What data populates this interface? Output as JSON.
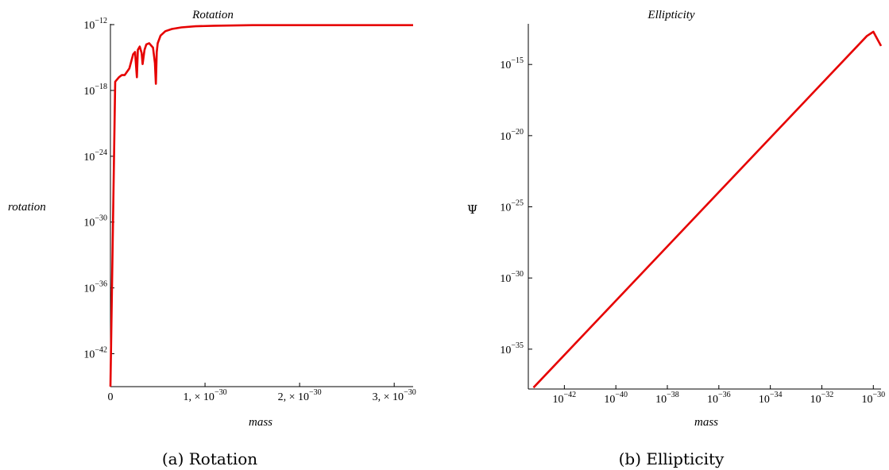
{
  "chart_data": [
    {
      "type": "line",
      "title": "Rotation",
      "xlabel": "mass",
      "ylabel": "rotation",
      "caption": "(a) Rotation",
      "xscale": "linear",
      "yscale": "log",
      "xlim": [
        0,
        3.2e-30
      ],
      "ylim_exp": [
        -45,
        -12
      ],
      "x_ticks": [
        {
          "value": 0,
          "mantissa": "0",
          "exp": ""
        },
        {
          "value": 1e-30,
          "mantissa": "1, × 10",
          "exp": "−30"
        },
        {
          "value": 2e-30,
          "mantissa": "2, × 10",
          "exp": "−30"
        },
        {
          "value": 3e-30,
          "mantissa": "3, × 10",
          "exp": "−30"
        }
      ],
      "y_ticks": [
        {
          "exp_value": -42,
          "label": "10",
          "exp": "−42"
        },
        {
          "exp_value": -36,
          "label": "10",
          "exp": "−36"
        },
        {
          "exp_value": -30,
          "label": "10",
          "exp": "−30"
        },
        {
          "exp_value": -24,
          "label": "10",
          "exp": "−24"
        },
        {
          "exp_value": -18,
          "label": "10",
          "exp": "−18"
        },
        {
          "exp_value": -12,
          "label": "10",
          "exp": "−12"
        }
      ],
      "series": [
        {
          "color": "#e60000",
          "x": [
            0,
            5e-32,
            9e-32,
            1.2e-31,
            1.5e-31,
            2e-31,
            2.4e-31,
            2.6e-31,
            2.8e-31,
            2.9e-31,
            3.1e-31,
            3.3e-31,
            3.4e-31,
            3.6e-31,
            3.8e-31,
            4.1e-31,
            4.5e-31,
            4.7e-31,
            4.8e-31,
            4.9e-31,
            5e-31,
            5.3e-31,
            5.8e-31,
            6.5e-31,
            7.5e-31,
            9e-31,
            1.1e-30,
            1.5e-30,
            2e-30,
            3.2e-30
          ],
          "y_exp": [
            -45,
            -17.2,
            -16.8,
            -16.6,
            -16.6,
            -16.0,
            -14.7,
            -14.5,
            -16.8,
            -14.3,
            -14.0,
            -14.6,
            -15.6,
            -14.3,
            -13.8,
            -13.7,
            -14.1,
            -15.5,
            -17.4,
            -14.5,
            -13.7,
            -13.0,
            -12.6,
            -12.4,
            -12.25,
            -12.15,
            -12.1,
            -12.05,
            -12.05,
            -12.05
          ]
        }
      ]
    },
    {
      "type": "line",
      "title": "Ellipticity",
      "xlabel": "mass",
      "ylabel": "Ψ",
      "caption": "(b) Ellipticity",
      "xscale": "log",
      "yscale": "log",
      "xlim_exp": [
        -43.4,
        -29.7
      ],
      "ylim_exp": [
        -37.8,
        -12.2
      ],
      "x_ticks": [
        {
          "exp_value": -42,
          "label": "10",
          "exp": "−42"
        },
        {
          "exp_value": -40,
          "label": "10",
          "exp": "−40"
        },
        {
          "exp_value": -38,
          "label": "10",
          "exp": "−38"
        },
        {
          "exp_value": -36,
          "label": "10",
          "exp": "−36"
        },
        {
          "exp_value": -34,
          "label": "10",
          "exp": "−34"
        },
        {
          "exp_value": -32,
          "label": "10",
          "exp": "−32"
        },
        {
          "exp_value": -30,
          "label": "10",
          "exp": "−30"
        }
      ],
      "y_ticks": [
        {
          "exp_value": -35,
          "label": "10",
          "exp": "−35"
        },
        {
          "exp_value": -30,
          "label": "10",
          "exp": "−30"
        },
        {
          "exp_value": -25,
          "label": "10",
          "exp": "−25"
        },
        {
          "exp_value": -20,
          "label": "10",
          "exp": "−20"
        },
        {
          "exp_value": -15,
          "label": "10",
          "exp": "−15"
        }
      ],
      "series": [
        {
          "color": "#e60000",
          "x_exp": [
            -43.2,
            -30.25,
            -30.0,
            -29.85,
            -29.7
          ],
          "y_exp": [
            -37.7,
            -13.0,
            -12.7,
            -13.2,
            -13.7
          ]
        }
      ]
    }
  ]
}
